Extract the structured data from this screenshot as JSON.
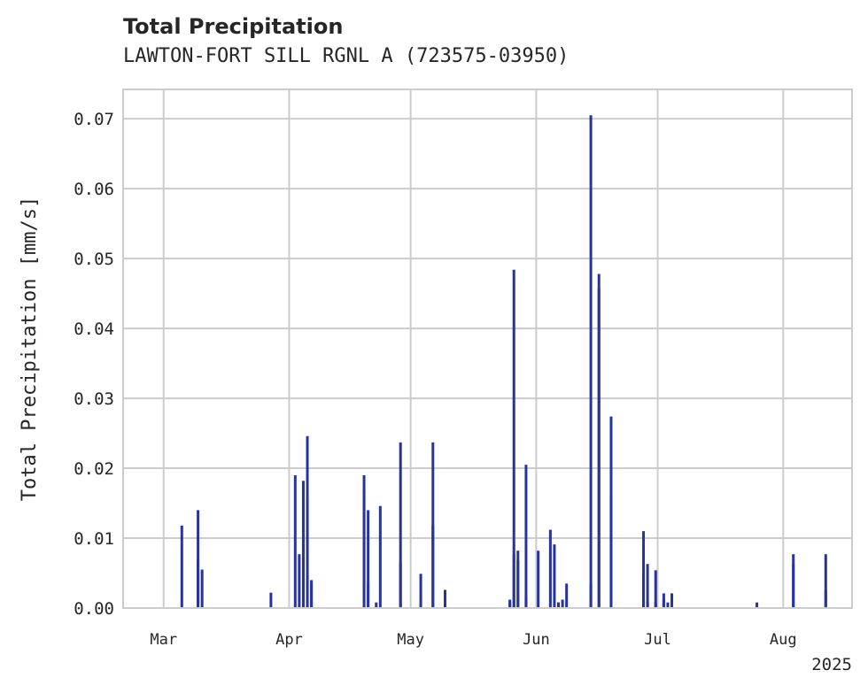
{
  "chart_data": {
    "type": "bar",
    "title": "Total Precipitation",
    "subtitle": "LAWTON-FORT SILL RGNL A (723575-03950)",
    "xlabel": "",
    "ylabel": "Total Precipitation [mm/s]",
    "x_year_label": "2025",
    "xlim": [
      "2025-02-19",
      "2025-08-18"
    ],
    "ylim": [
      0,
      0.0742
    ],
    "yticks": [
      0.0,
      0.01,
      0.02,
      0.03,
      0.04,
      0.05,
      0.06,
      0.07
    ],
    "ytick_labels": [
      "0.00",
      "0.01",
      "0.02",
      "0.03",
      "0.04",
      "0.05",
      "0.06",
      "0.07"
    ],
    "xticks": [
      "2025-03-01",
      "2025-04-01",
      "2025-05-01",
      "2025-06-01",
      "2025-07-01",
      "2025-08-01"
    ],
    "xtick_labels": [
      "Mar",
      "Apr",
      "May",
      "Jun",
      "Jul",
      "Aug"
    ],
    "grid": true,
    "bar_color": "#27349b",
    "x": [
      "2025-03-05",
      "2025-03-09",
      "2025-03-09",
      "2025-03-10",
      "2025-03-27",
      "2025-04-02",
      "2025-04-03",
      "2025-04-04",
      "2025-04-04",
      "2025-04-05",
      "2025-04-05",
      "2025-04-06",
      "2025-04-06",
      "2025-04-19",
      "2025-04-19",
      "2025-04-20",
      "2025-04-20",
      "2025-04-22",
      "2025-04-23",
      "2025-04-28",
      "2025-04-28",
      "2025-05-03",
      "2025-05-06",
      "2025-05-06",
      "2025-05-09",
      "2025-05-25",
      "2025-05-25",
      "2025-05-26",
      "2025-05-26",
      "2025-05-27",
      "2025-05-27",
      "2025-05-29",
      "2025-05-29",
      "2025-06-01",
      "2025-06-04",
      "2025-06-05",
      "2025-06-06",
      "2025-06-06",
      "2025-06-07",
      "2025-06-08",
      "2025-06-14",
      "2025-06-14",
      "2025-06-16",
      "2025-06-16",
      "2025-06-19",
      "2025-06-19",
      "2025-06-27",
      "2025-06-27",
      "2025-06-27",
      "2025-06-28",
      "2025-06-28",
      "2025-06-30",
      "2025-06-30",
      "2025-07-02",
      "2025-07-02",
      "2025-07-03",
      "2025-07-04",
      "2025-07-25",
      "2025-08-03",
      "2025-08-03",
      "2025-08-11",
      "2025-08-11"
    ],
    "values": [
      0.0118,
      0.014,
      0.0068,
      0.0055,
      0.0022,
      0.019,
      0.0077,
      0.0182,
      0.0092,
      0.0246,
      0.0155,
      0.004,
      0.0035,
      0.019,
      0.0168,
      0.014,
      0.0035,
      0.0008,
      0.0146,
      0.0237,
      0.0065,
      0.0049,
      0.0237,
      0.0118,
      0.0026,
      0.0012,
      0.0008,
      0.0484,
      0.0077,
      0.0068,
      0.0082,
      0.0205,
      0.0018,
      0.0082,
      0.0112,
      0.0091,
      0.0008,
      0.0008,
      0.0012,
      0.0035,
      0.0035,
      0.0705,
      0.0457,
      0.0478,
      0.0274,
      0.016,
      0.011,
      0.0049,
      0.0008,
      0.0008,
      0.0063,
      0.0008,
      0.0054,
      0.0012,
      0.0021,
      0.0008,
      0.0021,
      0.0008,
      0.0077,
      0.0063,
      0.0077,
      0.0026
    ]
  }
}
